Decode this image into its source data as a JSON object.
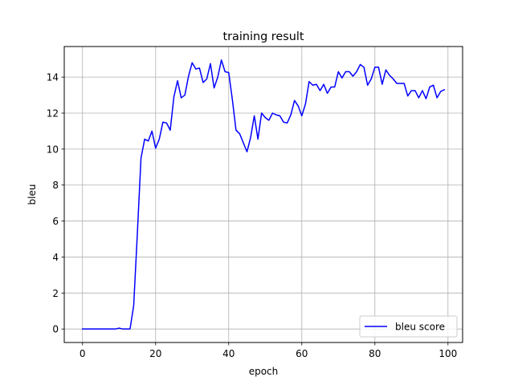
{
  "chart_data": {
    "type": "line",
    "title": "training result",
    "xlabel": "epoch",
    "ylabel": "bleu",
    "xlim": [
      -5,
      104
    ],
    "ylim": [
      -0.75,
      15.7
    ],
    "xticks": [
      0,
      20,
      40,
      60,
      80,
      100
    ],
    "yticks": [
      0,
      2,
      4,
      6,
      8,
      10,
      12,
      14
    ],
    "grid": true,
    "legend_position": "lower right",
    "series": [
      {
        "name": "bleu score",
        "color": "#0000ff",
        "x": [
          0,
          1,
          2,
          3,
          4,
          5,
          6,
          7,
          8,
          9,
          10,
          11,
          12,
          13,
          14,
          15,
          16,
          17,
          18,
          19,
          20,
          21,
          22,
          23,
          24,
          25,
          26,
          27,
          28,
          29,
          30,
          31,
          32,
          33,
          34,
          35,
          36,
          37,
          38,
          39,
          40,
          41,
          42,
          43,
          44,
          45,
          46,
          47,
          48,
          49,
          50,
          51,
          52,
          53,
          54,
          55,
          56,
          57,
          58,
          59,
          60,
          61,
          62,
          63,
          64,
          65,
          66,
          67,
          68,
          69,
          70,
          71,
          72,
          73,
          74,
          75,
          76,
          77,
          78,
          79,
          80,
          81,
          82,
          83,
          84,
          85,
          86,
          87,
          88,
          89,
          90,
          91,
          92,
          93,
          94,
          95,
          96,
          97,
          98,
          99
        ],
        "values": [
          0,
          0,
          0,
          0,
          0,
          0,
          0,
          0,
          0,
          0,
          0.05,
          0,
          0,
          0,
          1.3,
          5.3,
          9.5,
          10.55,
          10.45,
          11.0,
          10.05,
          10.55,
          11.5,
          11.45,
          11.05,
          12.9,
          13.8,
          12.85,
          13.0,
          14.05,
          14.8,
          14.45,
          14.5,
          13.7,
          13.9,
          14.75,
          13.4,
          14.0,
          14.95,
          14.3,
          14.25,
          12.75,
          11.05,
          10.85,
          10.35,
          9.85,
          10.65,
          11.85,
          10.55,
          12.0,
          11.75,
          11.6,
          12.0,
          11.9,
          11.85,
          11.5,
          11.45,
          11.9,
          12.7,
          12.4,
          11.85,
          12.5,
          13.75,
          13.55,
          13.6,
          13.25,
          13.6,
          13.1,
          13.45,
          13.45,
          14.3,
          13.95,
          14.3,
          14.3,
          14.05,
          14.3,
          14.7,
          14.55,
          13.55,
          13.9,
          14.55,
          14.55,
          13.6,
          14.4,
          14.1,
          13.9,
          13.65,
          13.65,
          13.65,
          12.95,
          13.25,
          13.25,
          12.85,
          13.25,
          12.8,
          13.45,
          13.55,
          12.85,
          13.2,
          13.3
        ]
      }
    ]
  }
}
